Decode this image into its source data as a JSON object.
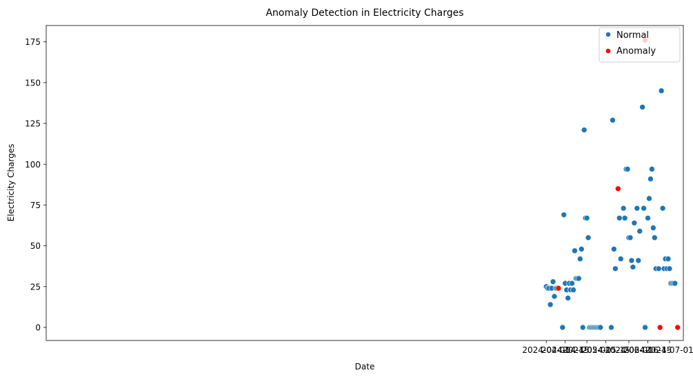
{
  "chart_data": {
    "type": "scatter",
    "title": "Anomaly Detection in Electricity Charges",
    "xlabel": "Date",
    "ylabel": "Electricity Charges",
    "xlim": [
      "2023-03-28T19:00",
      "2024-07-11T05:00"
    ],
    "ylim": [
      -8,
      185
    ],
    "x_ticks": [
      {
        "date": "2024-04-01",
        "label": "2024-04-01"
      },
      {
        "date": "2024-04-15",
        "label": "2024-04-15"
      },
      {
        "date": "2024-05-01",
        "label": "2024-05-01"
      },
      {
        "date": "2024-05-15",
        "label": "2024-05-15"
      },
      {
        "date": "2024-06-01",
        "label": "2024-06-01"
      },
      {
        "date": "2024-06-15",
        "label": "2024-06-15"
      },
      {
        "date": "2024-07-01",
        "label": "2024-07-01"
      }
    ],
    "y_ticks": [
      0,
      25,
      50,
      75,
      100,
      125,
      150,
      175
    ],
    "grid": false,
    "legend_position": "top-right",
    "series": [
      {
        "name": "Normal",
        "color": "#1f77b4",
        "points": [
          [
            "2024-04-01",
            25
          ],
          [
            "2024-04-02",
            24
          ],
          [
            "2024-04-03",
            24
          ],
          [
            "2024-04-04",
            14
          ],
          [
            "2024-04-05",
            24
          ],
          [
            "2024-04-06",
            28
          ],
          [
            "2024-04-07",
            19
          ],
          [
            "2024-04-08",
            24
          ],
          [
            "2024-04-09",
            24
          ],
          [
            "2024-04-13",
            0
          ],
          [
            "2024-04-14",
            69
          ],
          [
            "2024-04-15",
            27
          ],
          [
            "2024-04-16",
            23
          ],
          [
            "2024-04-17",
            18
          ],
          [
            "2024-04-18",
            27
          ],
          [
            "2024-04-19",
            23
          ],
          [
            "2024-04-20",
            27
          ],
          [
            "2024-04-21",
            23
          ],
          [
            "2024-04-22",
            47
          ],
          [
            "2024-04-23",
            30
          ],
          [
            "2024-04-24",
            30
          ],
          [
            "2024-04-25",
            30
          ],
          [
            "2024-04-26",
            42
          ],
          [
            "2024-04-27",
            48
          ],
          [
            "2024-04-28",
            0
          ],
          [
            "2024-04-29",
            121
          ],
          [
            "2024-04-30",
            67
          ],
          [
            "2024-05-01",
            67
          ],
          [
            "2024-05-02",
            55
          ],
          [
            "2024-05-03",
            0
          ],
          [
            "2024-05-04",
            0
          ],
          [
            "2024-05-05",
            0
          ],
          [
            "2024-05-06",
            0
          ],
          [
            "2024-05-07",
            0
          ],
          [
            "2024-05-08",
            0
          ],
          [
            "2024-05-09",
            0
          ],
          [
            "2024-05-10",
            0
          ],
          [
            "2024-05-11",
            0
          ],
          [
            "2024-05-19",
            0
          ],
          [
            "2024-05-20",
            127
          ],
          [
            "2024-05-21",
            48
          ],
          [
            "2024-05-22",
            36
          ],
          [
            "2024-05-25",
            67
          ],
          [
            "2024-05-26",
            42
          ],
          [
            "2024-05-28",
            73
          ],
          [
            "2024-05-29",
            67
          ],
          [
            "2024-05-30",
            97
          ],
          [
            "2024-05-31",
            97
          ],
          [
            "2024-06-01",
            55
          ],
          [
            "2024-06-02",
            55
          ],
          [
            "2024-06-03",
            41
          ],
          [
            "2024-06-04",
            37
          ],
          [
            "2024-06-05",
            64
          ],
          [
            "2024-06-07",
            73
          ],
          [
            "2024-06-08",
            41
          ],
          [
            "2024-06-09",
            59
          ],
          [
            "2024-06-11",
            135
          ],
          [
            "2024-06-12",
            73
          ],
          [
            "2024-06-13",
            0
          ],
          [
            "2024-06-15",
            67
          ],
          [
            "2024-06-16",
            79
          ],
          [
            "2024-06-17",
            91
          ],
          [
            "2024-06-18",
            97
          ],
          [
            "2024-06-19",
            61
          ],
          [
            "2024-06-20",
            55
          ],
          [
            "2024-06-21",
            36
          ],
          [
            "2024-06-23",
            36
          ],
          [
            "2024-06-25",
            145
          ],
          [
            "2024-06-26",
            73
          ],
          [
            "2024-06-27",
            36
          ],
          [
            "2024-06-28",
            42
          ],
          [
            "2024-06-29",
            36
          ],
          [
            "2024-06-30",
            42
          ],
          [
            "2024-07-01",
            36
          ],
          [
            "2024-07-02",
            27
          ],
          [
            "2024-07-03",
            27
          ],
          [
            "2024-07-04",
            27
          ],
          [
            "2024-07-05",
            27
          ]
        ]
      },
      {
        "name": "Anomaly",
        "color": "#ff0000",
        "points": [
          [
            "2024-04-10",
            24
          ],
          [
            "2024-05-24",
            85
          ],
          [
            "2024-06-13",
            176
          ],
          [
            "2024-06-24",
            0
          ],
          [
            "2024-07-07",
            0
          ]
        ]
      }
    ]
  }
}
